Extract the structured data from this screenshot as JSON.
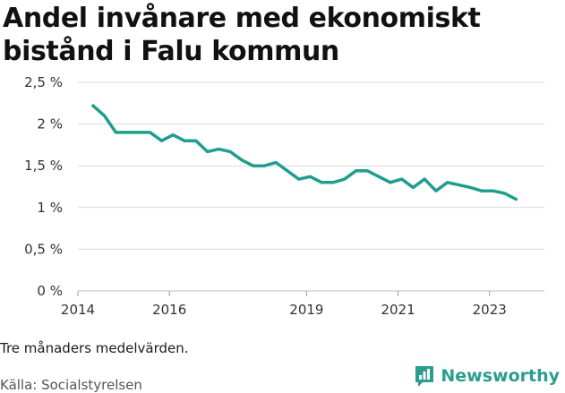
{
  "title_line1": "Andel invånare med ekonomiskt",
  "title_line2": "bistånd i Falu kommun",
  "note": "Tre månaders medelvärden.",
  "source": "Källa: Socialstyrelsen",
  "brand": "Newsworthy",
  "colors": {
    "line": "#1f9e8e",
    "grid": "#d9d9d9",
    "brand": "#2a9d8f"
  },
  "chart_data": {
    "type": "line",
    "ylim": [
      0,
      2.5
    ],
    "yticks": [
      0,
      0.5,
      1,
      1.5,
      2,
      2.5
    ],
    "ytick_labels": [
      "0 %",
      "0,5 %",
      "1 %",
      "1,5 %",
      "2 %",
      "2,5 %"
    ],
    "xlim": [
      2014.0,
      2024.2
    ],
    "xticks": [
      2014,
      2016,
      2019,
      2021,
      2023
    ],
    "xtick_labels": [
      "2014",
      "2016",
      "2019",
      "2021",
      "2023"
    ],
    "grid": true,
    "series": [
      {
        "x": [
          2014.33,
          2014.58,
          2014.83,
          2015.08,
          2015.33,
          2015.58,
          2015.83,
          2016.08,
          2016.33,
          2016.58,
          2016.83,
          2017.08,
          2017.33,
          2017.58,
          2017.83,
          2018.08,
          2018.33,
          2018.58,
          2018.83,
          2019.08,
          2019.33,
          2019.58,
          2019.83,
          2020.08,
          2020.33,
          2020.58,
          2020.83,
          2021.08,
          2021.33,
          2021.58,
          2021.83,
          2022.08,
          2022.33,
          2022.58,
          2022.83,
          2023.08,
          2023.33,
          2023.58
        ],
        "y": [
          2.22,
          2.1,
          1.9,
          1.9,
          1.9,
          1.9,
          1.8,
          1.87,
          1.8,
          1.8,
          1.67,
          1.7,
          1.67,
          1.57,
          1.5,
          1.5,
          1.54,
          1.44,
          1.34,
          1.37,
          1.3,
          1.3,
          1.34,
          1.44,
          1.44,
          1.37,
          1.3,
          1.34,
          1.24,
          1.34,
          1.2,
          1.3,
          1.27,
          1.24,
          1.2,
          1.2,
          1.17,
          1.1
        ]
      }
    ]
  }
}
